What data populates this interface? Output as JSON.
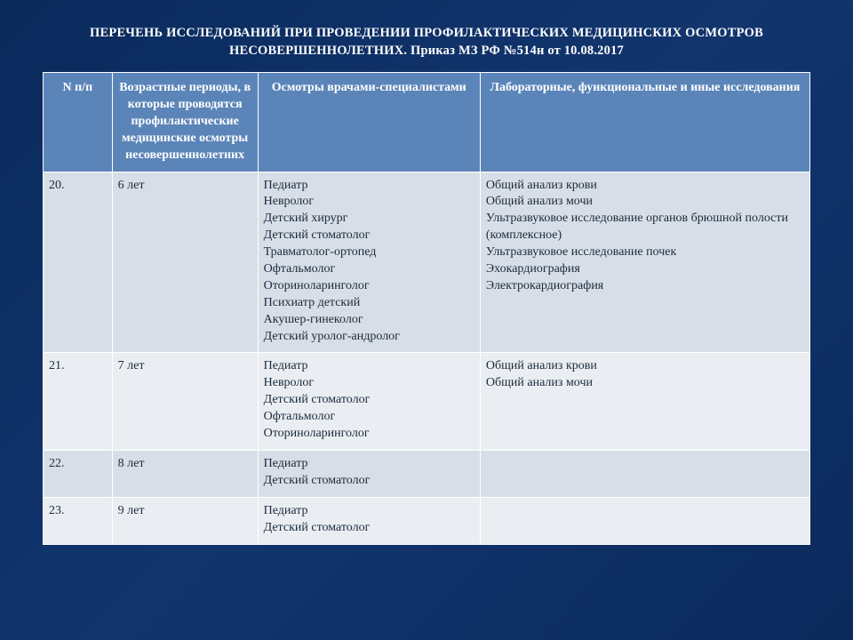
{
  "title_line1": "ПЕРЕЧЕНЬ ИССЛЕДОВАНИЙ ПРИ ПРОВЕДЕНИИ ПРОФИЛАКТИЧЕСКИХ МЕДИЦИНСКИХ ОСМОТРОВ",
  "title_line2": "НЕСОВЕРШЕННОЛЕТНИХ. Приказ МЗ РФ №514н от 10.08.2017",
  "table": {
    "type": "table",
    "background_color": "#eaeef3",
    "header_bg": "#5b85b8",
    "header_text_color": "#ffffff",
    "row_band_colors": [
      "#d7dee7",
      "#eaeef3"
    ],
    "border_color": "#ffffff",
    "text_color": "#1b2a3a",
    "font_family": "Times New Roman",
    "header_fontsize": 14,
    "cell_fontsize": 14,
    "columns": [
      {
        "key": "num",
        "label": "N п/п",
        "width_pct": 9
      },
      {
        "key": "age",
        "label": "Возрастные периоды, в которые проводятся профилактические медицинские осмотры несовершеннолетних",
        "width_pct": 19
      },
      {
        "key": "doc",
        "label": "Осмотры врачами-специалистами",
        "width_pct": 29
      },
      {
        "key": "lab",
        "label": "Лабораторные, функциональные и иные исследования",
        "width_pct": 43
      }
    ],
    "rows": [
      {
        "num": "20.",
        "age": "6 лет",
        "doc": [
          "Педиатр",
          "Невролог",
          "Детский хирург",
          "Детский стоматолог",
          "Травматолог-ортопед",
          "Офтальмолог",
          "Оториноларинголог",
          "Психиатр детский",
          "Акушер-гинеколог",
          "Детский уролог-андролог"
        ],
        "lab": [
          "Общий анализ крови",
          "Общий анализ мочи",
          "Ультразвуковое исследование органов брюшной полости (комплексное)",
          "Ультразвуковое исследование почек",
          "Эхокардиография",
          "Электрокардиография"
        ]
      },
      {
        "num": "21.",
        "age": "7 лет",
        "doc": [
          "Педиатр",
          "Невролог",
          "Детский стоматолог",
          "Офтальмолог",
          "Оториноларинголог"
        ],
        "lab": [
          "Общий анализ крови",
          "Общий анализ мочи"
        ]
      },
      {
        "num": "22.",
        "age": "8 лет",
        "doc": [
          "Педиатр",
          "Детский стоматолог"
        ],
        "lab": []
      },
      {
        "num": "23.",
        "age": "9 лет",
        "doc": [
          "Педиатр",
          "Детский стоматолог"
        ],
        "lab": []
      }
    ]
  },
  "page_bg_gradient": [
    "#0a2a5c",
    "#12356e",
    "#0a2a5c"
  ]
}
